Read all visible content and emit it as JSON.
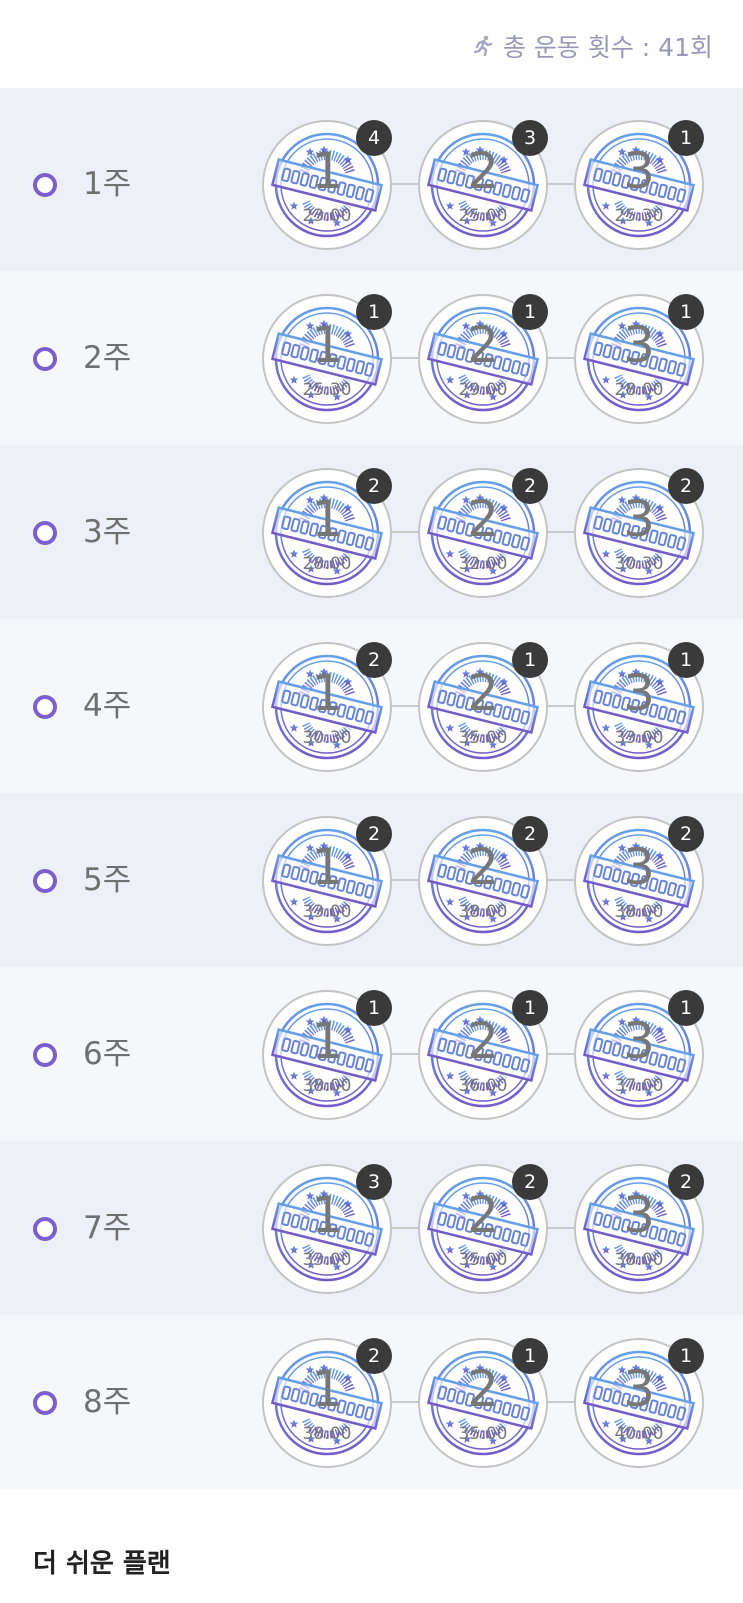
{
  "header": {
    "icon": "running-person-icon",
    "total_label": "총 운동 횟수 : 41회"
  },
  "colors": {
    "accent": "#7b5fd0",
    "badge": "#3a3a3a",
    "row_light": "#f5f7fb",
    "row_dark": "#edf0f7"
  },
  "stamp_text": "COMPLETION",
  "weeks": [
    {
      "label": "1주",
      "sessions": [
        {
          "num": "1",
          "time": "23:00",
          "count": "4"
        },
        {
          "num": "2",
          "time": "25:00",
          "count": "3"
        },
        {
          "num": "3",
          "time": "25:30",
          "count": "1"
        }
      ]
    },
    {
      "label": "2주",
      "sessions": [
        {
          "num": "1",
          "time": "25:30",
          "count": "1"
        },
        {
          "num": "2",
          "time": "29:00",
          "count": "1"
        },
        {
          "num": "3",
          "time": "28:00",
          "count": "1"
        }
      ]
    },
    {
      "label": "3주",
      "sessions": [
        {
          "num": "1",
          "time": "28:00",
          "count": "2"
        },
        {
          "num": "2",
          "time": "32:00",
          "count": "2"
        },
        {
          "num": "3",
          "time": "30:30",
          "count": "2"
        }
      ]
    },
    {
      "label": "4주",
      "sessions": [
        {
          "num": "1",
          "time": "30:30",
          "count": "2"
        },
        {
          "num": "2",
          "time": "35:00",
          "count": "1"
        },
        {
          "num": "3",
          "time": "33:00",
          "count": "1"
        }
      ]
    },
    {
      "label": "5주",
      "sessions": [
        {
          "num": "1",
          "time": "33:00",
          "count": "2"
        },
        {
          "num": "2",
          "time": "38:00",
          "count": "2"
        },
        {
          "num": "3",
          "time": "38:00",
          "count": "2"
        }
      ]
    },
    {
      "label": "6주",
      "sessions": [
        {
          "num": "1",
          "time": "38:00",
          "count": "1"
        },
        {
          "num": "2",
          "time": "36:00",
          "count": "1"
        },
        {
          "num": "3",
          "time": "37:00",
          "count": "1"
        }
      ]
    },
    {
      "label": "7주",
      "sessions": [
        {
          "num": "1",
          "time": "33:00",
          "count": "3"
        },
        {
          "num": "2",
          "time": "35:00",
          "count": "2"
        },
        {
          "num": "3",
          "time": "38:00",
          "count": "2"
        }
      ]
    },
    {
      "label": "8주",
      "sessions": [
        {
          "num": "1",
          "time": "38:00",
          "count": "2"
        },
        {
          "num": "2",
          "time": "35:00",
          "count": "1"
        },
        {
          "num": "3",
          "time": "40:00",
          "count": "1"
        }
      ]
    }
  ],
  "footer": {
    "title": "더 쉬운 플랜"
  }
}
